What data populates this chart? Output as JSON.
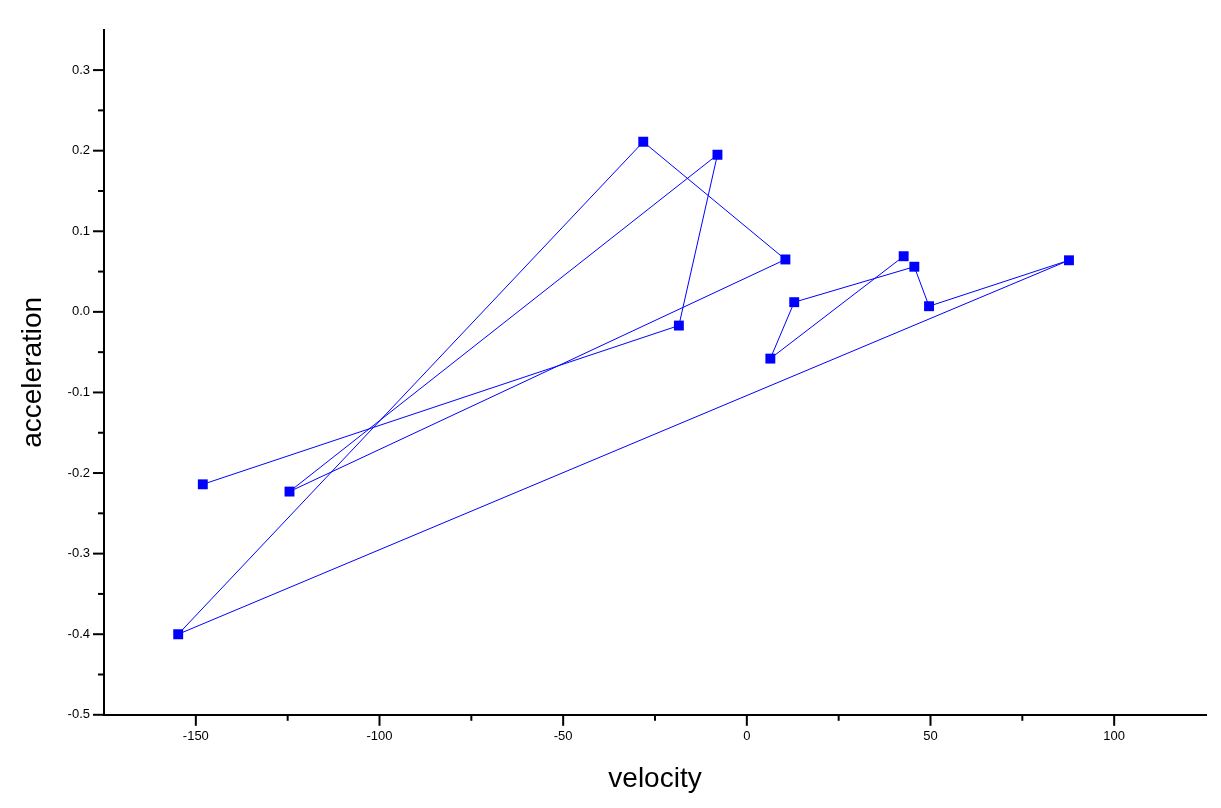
{
  "chart_data": {
    "type": "line",
    "xlabel": "velocity",
    "ylabel": "acceleration",
    "x": [
      -148.1,
      -18.5,
      -8.0,
      -124.5,
      10.5,
      -28.2,
      -154.8,
      87.7,
      49.6,
      45.6,
      12.9,
      6.4,
      42.7
    ],
    "series": [
      {
        "color": "#0000ff",
        "values": [
          -0.214,
          -0.017,
          0.195,
          -0.223,
          0.065,
          0.211,
          -0.4,
          0.064,
          0.007,
          0.056,
          0.012,
          -0.058,
          0.069
        ]
      }
    ],
    "xlim": [
      -175,
      125
    ],
    "xticks": [
      -150,
      {
        "value": -125,
        "label": null
      },
      -100,
      {
        "value": -75,
        "label": null
      },
      -50,
      {
        "value": -25,
        "label": null
      },
      0,
      {
        "value": 25,
        "label": null
      },
      50,
      {
        "value": 75,
        "label": null
      },
      100
    ],
    "ylim": [
      -0.5,
      0.35
    ],
    "yticks": [
      -0.5,
      {
        "value": -0.45,
        "label": null
      },
      -0.4,
      {
        "value": -0.35,
        "label": null
      },
      -0.3,
      {
        "value": -0.25,
        "label": null
      },
      -0.2,
      {
        "value": -0.15,
        "label": null
      },
      -0.1,
      {
        "value": -0.05,
        "label": null
      },
      {
        "value": 0,
        "label": "0.0"
      },
      {
        "value": 0.05,
        "label": null
      },
      0.1,
      {
        "value": 0.15,
        "label": null
      },
      0.2,
      {
        "value": 0.25,
        "label": null
      },
      0.3
    ],
    "marker": "square",
    "line_style": "solid",
    "grid": false,
    "legend": false
  }
}
